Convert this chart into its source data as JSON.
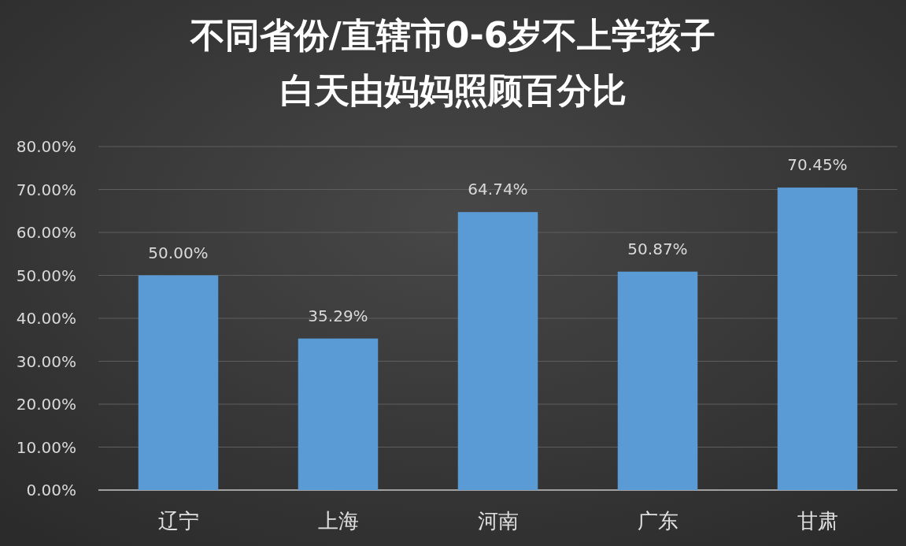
{
  "chart_data": {
    "type": "bar",
    "title": "不同省份/直辖市0-6岁不上学孩子白天由妈妈照顾百分比",
    "categories": [
      "辽宁",
      "上海",
      "河南",
      "广东",
      "甘肃"
    ],
    "values": [
      50.0,
      35.29,
      64.74,
      50.87,
      70.45
    ],
    "value_labels": [
      "50.00%",
      "35.29%",
      "64.74%",
      "50.87%",
      "70.45%"
    ],
    "color": "#5b9bd5",
    "ylim": [
      0,
      80
    ],
    "yticks": [
      {
        "value": 0,
        "label": "0.00%"
      },
      {
        "value": 10,
        "label": "10.00%"
      },
      {
        "value": 20,
        "label": "20.00%"
      },
      {
        "value": 30,
        "label": "30.00%"
      },
      {
        "value": 40,
        "label": "40.00%"
      },
      {
        "value": 50,
        "label": "50.00%"
      },
      {
        "value": 60,
        "label": "60.00%"
      },
      {
        "value": 70,
        "label": "70.00%"
      },
      {
        "value": 80,
        "label": "80.00%"
      }
    ],
    "grid": "y"
  }
}
